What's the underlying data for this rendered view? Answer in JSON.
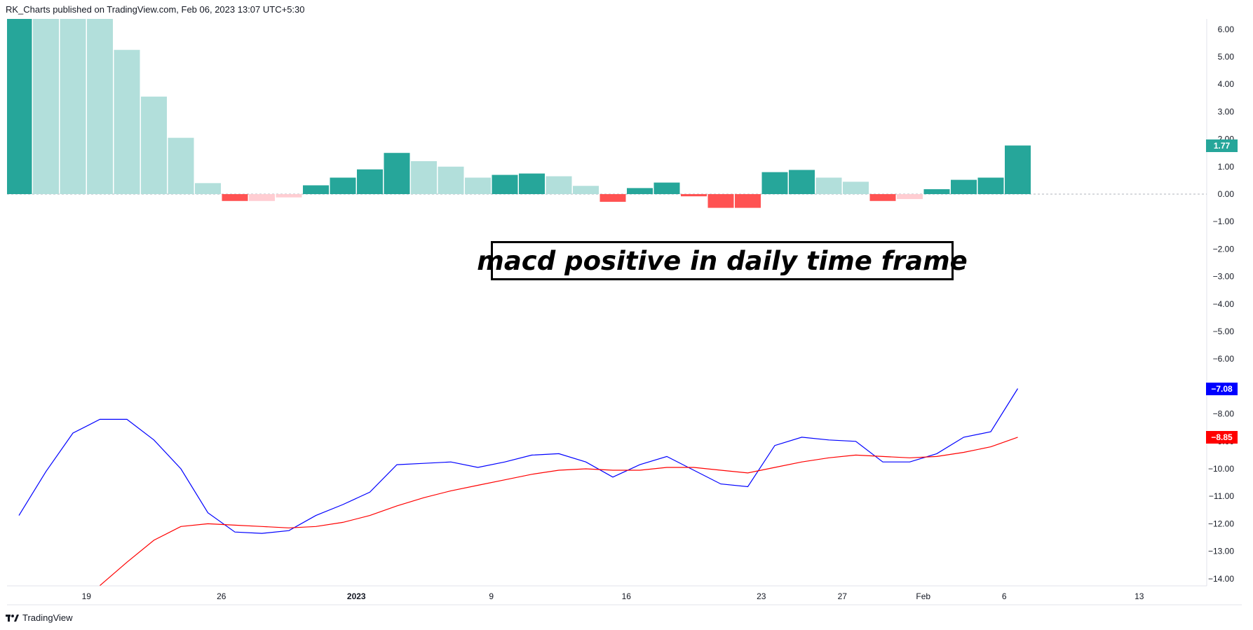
{
  "header": {
    "text": "RK_Charts published on TradingView.com, Feb 06, 2023 13:07 UTC+5:30"
  },
  "logo": {
    "text": "TradingView",
    "icon": "tradingview-logo-icon"
  },
  "annotation": {
    "text": "macd positive in daily time frame"
  },
  "colors": {
    "hist_up_strong": "#26a69a",
    "hist_up_weak": "#b2dfdb",
    "hist_down_strong": "#ff5252",
    "hist_down_weak": "#ffcdd2",
    "macd_line": "#0000ff",
    "signal_line": "#ff0000",
    "axis_text": "#131722",
    "zero_line": "#b2b5be"
  },
  "tags": {
    "histogram": {
      "text": "1.77",
      "color": "#26a69a"
    },
    "macd": {
      "text": "−7.08",
      "color": "#0000ff"
    },
    "signal": {
      "text": "−8.85",
      "color": "#ff0000"
    }
  },
  "chart_data": {
    "type": "bar",
    "y_axis": {
      "ylim": [
        -14.6,
        6.2
      ],
      "ticks": [
        6,
        5,
        4,
        3,
        2,
        1,
        0,
        -1,
        -2,
        -3,
        -4,
        -5,
        -6,
        -7,
        -8,
        -9,
        -10,
        -11,
        -12,
        -13,
        -14
      ],
      "tick_labels": [
        "6.00",
        "5.00",
        "4.00",
        "3.00",
        "2.00",
        "1.00",
        "0.00",
        "−1.00",
        "−2.00",
        "−3.00",
        "−4.00",
        "−5.00",
        "−6.00",
        "−7.00",
        "−8.00",
        "−9.00",
        "−10.00",
        "−11.00",
        "−12.00",
        "−13.00",
        "−14.00"
      ]
    },
    "x_axis": {
      "labels": [
        "19",
        "26",
        "2023",
        "9",
        "16",
        "23",
        "27",
        "Feb",
        "6",
        "13"
      ],
      "label_index": [
        2.5,
        7.5,
        12.5,
        17.5,
        22.5,
        27.5,
        30.5,
        33.5,
        36.5,
        41.5
      ],
      "bold_labels": [
        "2023"
      ]
    },
    "histogram": {
      "values": [
        8.2,
        6.8,
        6.5,
        6.4,
        5.25,
        3.55,
        2.05,
        0.4,
        -0.25,
        -0.25,
        -0.12,
        0.32,
        0.6,
        0.9,
        1.5,
        1.2,
        1.0,
        0.6,
        0.7,
        0.75,
        0.65,
        0.3,
        -0.28,
        0.22,
        0.42,
        -0.08,
        -0.5,
        -0.5,
        0.8,
        0.88,
        0.6,
        0.45,
        -0.25,
        -0.18,
        0.18,
        0.52,
        0.6,
        1.77
      ],
      "kinds": [
        "up_strong",
        "up_weak",
        "up_weak",
        "up_weak",
        "up_weak",
        "up_weak",
        "up_weak",
        "up_weak",
        "down_strong",
        "down_weak",
        "down_weak",
        "up_strong",
        "up_strong",
        "up_strong",
        "up_strong",
        "up_weak",
        "up_weak",
        "up_weak",
        "up_strong",
        "up_strong",
        "up_weak",
        "up_weak",
        "down_strong",
        "up_strong",
        "up_strong",
        "down_strong",
        "down_strong",
        "down_strong",
        "up_strong",
        "up_strong",
        "up_weak",
        "up_weak",
        "down_strong",
        "down_weak",
        "up_strong",
        "up_strong",
        "up_strong",
        "up_strong"
      ]
    },
    "series": [
      {
        "key": "macd",
        "values": [
          -11.7,
          -10.1,
          -8.7,
          -8.2,
          -8.2,
          -8.95,
          -10.0,
          -11.6,
          -12.3,
          -12.35,
          -12.25,
          -11.7,
          -11.3,
          -10.85,
          -9.85,
          -9.8,
          -9.75,
          -9.95,
          -9.75,
          -9.5,
          -9.45,
          -9.75,
          -10.3,
          -9.85,
          -9.55,
          -10.05,
          -10.55,
          -10.65,
          -9.15,
          -8.85,
          -8.95,
          -9.0,
          -9.75,
          -9.75,
          -9.45,
          -8.85,
          -8.65,
          -7.08
        ]
      },
      {
        "key": "signal",
        "start_index": 3,
        "values": [
          -14.25,
          -13.4,
          -12.6,
          -12.1,
          -12.0,
          -12.05,
          -12.1,
          -12.15,
          -12.1,
          -11.95,
          -11.7,
          -11.35,
          -11.05,
          -10.8,
          -10.6,
          -10.4,
          -10.2,
          -10.05,
          -10.0,
          -10.05,
          -10.05,
          -9.95,
          -9.95,
          -10.05,
          -10.15,
          -9.95,
          -9.75,
          -9.6,
          -9.5,
          -9.55,
          -9.6,
          -9.55,
          -9.4,
          -9.2,
          -8.85
        ]
      }
    ]
  }
}
